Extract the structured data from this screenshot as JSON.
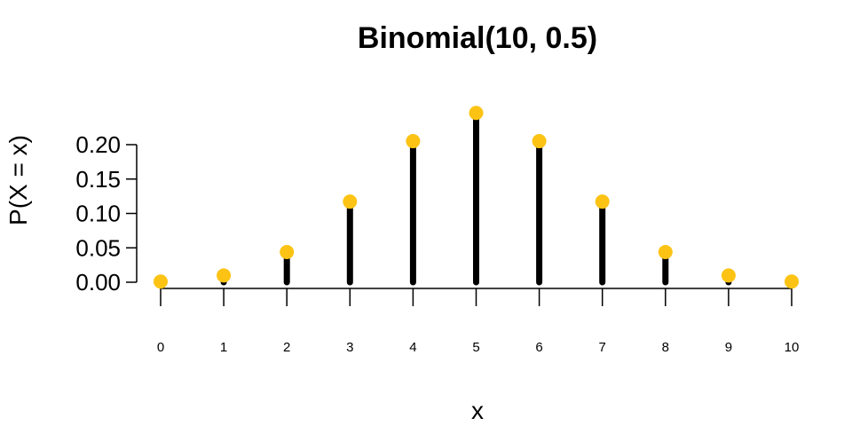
{
  "chart_data": {
    "type": "bar",
    "title": "Binomial(10, 0.5)",
    "xlabel": "x",
    "ylabel": "P(X = x)",
    "x": [
      0,
      1,
      2,
      3,
      4,
      5,
      6,
      7,
      8,
      9,
      10
    ],
    "x_tick_labels": [
      "0",
      "1",
      "2",
      "3",
      "4",
      "5",
      "6",
      "7",
      "8",
      "9",
      "10"
    ],
    "values": [
      0.001,
      0.0098,
      0.0439,
      0.1172,
      0.2051,
      0.2461,
      0.2051,
      0.1172,
      0.0439,
      0.0098,
      0.001
    ],
    "ylim": [
      0,
      0.25
    ],
    "y_ticks": [
      0.0,
      0.05,
      0.1,
      0.15,
      0.2
    ],
    "y_tick_labels": [
      "0.00",
      "0.05",
      "0.10",
      "0.15",
      "0.20"
    ],
    "grid": false,
    "colors": {
      "stem": "#000000",
      "point": "#FCC314",
      "axis": "#000000"
    }
  }
}
